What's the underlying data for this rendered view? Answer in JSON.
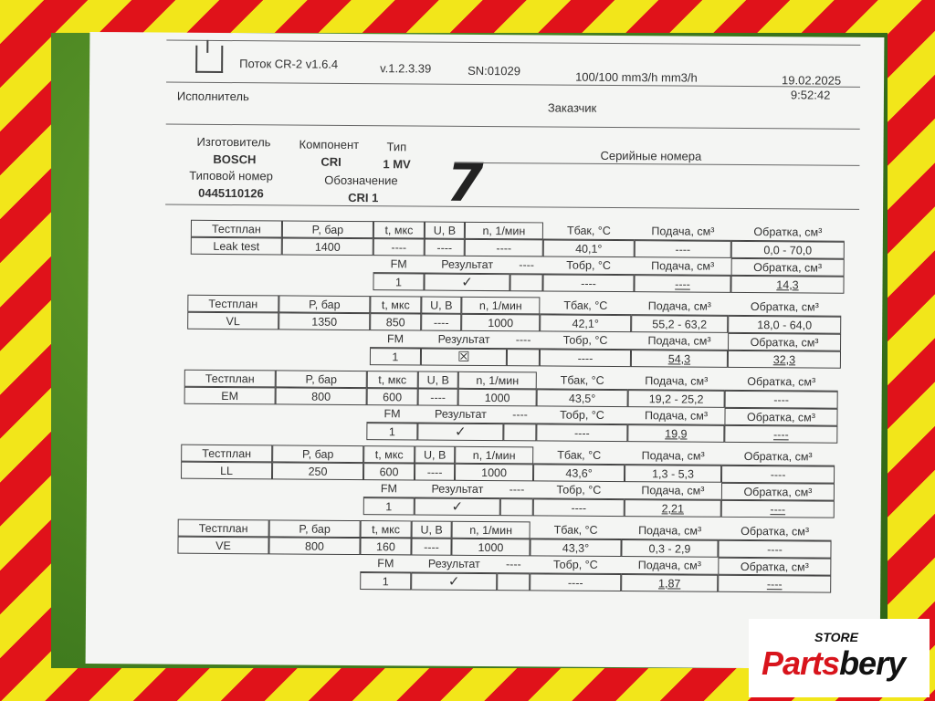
{
  "header": {
    "program": "Поток CR-2 v1.6.4",
    "version": "v.1.2.3.39",
    "serial": "SN:01029",
    "flow": "100/100 mm3/h mm3/h",
    "date": "19.02.2025",
    "time": "9:52:42",
    "executor_label": "Исполнитель",
    "customer_label": "Заказчик"
  },
  "component": {
    "manufacturer_label": "Изготовитель",
    "manufacturer": "BOSCH",
    "component_label": "Компонент",
    "component": "CRI",
    "type_label": "Тип",
    "type": "1 MV",
    "part_number_label": "Типовой номер",
    "part_number": "0445110126",
    "designation_label": "Обозначение",
    "designation": "CRI 1",
    "serials_label": "Серийные номера",
    "handwritten_mark": "7"
  },
  "columns": {
    "plan": "Тестплан",
    "p": "P, бар",
    "t": "t, мкс",
    "u": "U, В",
    "n": "n, 1/мин",
    "tbak": "Тбак, °C",
    "supply": "Подача, см³",
    "return": "Обратка, см³",
    "fm": "FM",
    "result": "Результат",
    "dash": "----",
    "tobr": "Тобр, °C"
  },
  "tests": [
    {
      "plan": "Leak test",
      "p": "1400",
      "t": "----",
      "u": "----",
      "n": "----",
      "tbak": "40,1°",
      "supply_range": "----",
      "return_range": "0,0 - 70,0",
      "fm": "1",
      "result": "✓",
      "result_icon": "check-icon",
      "tobr": "----",
      "supply": "----",
      "return": "14,3"
    },
    {
      "plan": "VL",
      "p": "1350",
      "t": "850",
      "u": "----",
      "n": "1000",
      "tbak": "42,1°",
      "supply_range": "55,2 - 63,2",
      "return_range": "18,0 - 64,0",
      "fm": "1",
      "result": "☒",
      "result_icon": "cross-box-icon",
      "tobr": "----",
      "supply": "54,3",
      "return": "32,3"
    },
    {
      "plan": "EM",
      "p": "800",
      "t": "600",
      "u": "----",
      "n": "1000",
      "tbak": "43,5°",
      "supply_range": "19,2 - 25,2",
      "return_range": "----",
      "fm": "1",
      "result": "✓",
      "result_icon": "check-icon",
      "tobr": "----",
      "supply": "19,9",
      "return": "----"
    },
    {
      "plan": "LL",
      "p": "250",
      "t": "600",
      "u": "----",
      "n": "1000",
      "tbak": "43,6°",
      "supply_range": "1,3 - 5,3",
      "return_range": "----",
      "fm": "1",
      "result": "✓",
      "result_icon": "check-icon",
      "tobr": "----",
      "supply": "2,21",
      "return": "----"
    },
    {
      "plan": "VE",
      "p": "800",
      "t": "160",
      "u": "----",
      "n": "1000",
      "tbak": "43,3°",
      "supply_range": "0,3 - 2,9",
      "return_range": "----",
      "fm": "1",
      "result": "✓",
      "result_icon": "check-icon",
      "tobr": "----",
      "supply": "1,87",
      "return": "----"
    }
  ],
  "watermark": {
    "store": "STORE",
    "brand_a": "Parts",
    "brand_b": "bery"
  },
  "colors": {
    "stripe_red": "#e0121a",
    "stripe_yellow": "#f2e61a",
    "grass": "#3f7a1e",
    "brand_red": "#d8141c"
  }
}
